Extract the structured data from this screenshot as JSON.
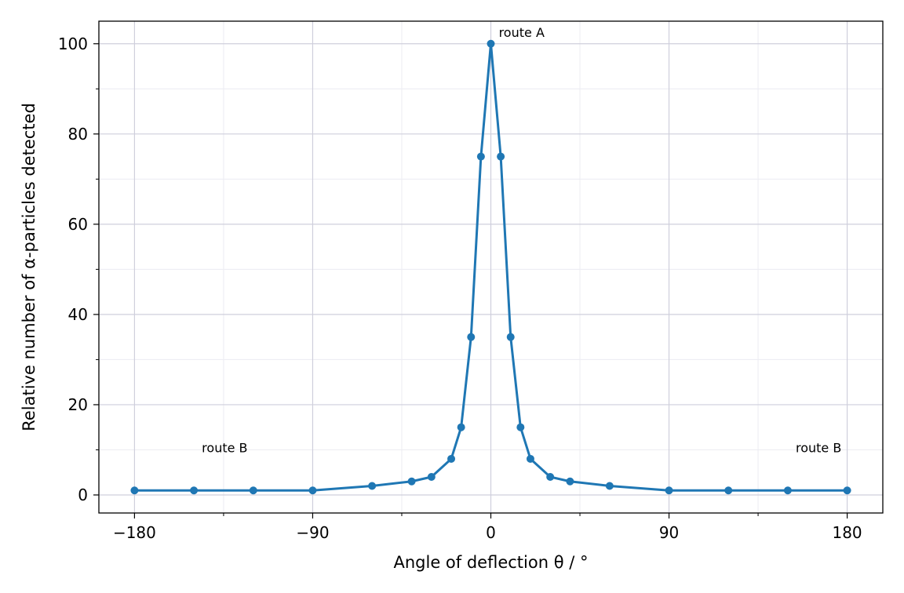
{
  "chart_data": {
    "type": "line",
    "title": "",
    "xlabel": "Angle of deflection θ / °",
    "ylabel": "Relative number of α-particles detected",
    "xlim": [
      -198,
      198
    ],
    "ylim": [
      -4,
      105
    ],
    "x_ticks": [
      -180,
      -90,
      0,
      90,
      180
    ],
    "x_tick_labels": [
      "−180",
      "−90",
      "0",
      "90",
      "180"
    ],
    "x_minor_ticks": [
      -135,
      -45,
      45,
      135
    ],
    "y_ticks": [
      0,
      20,
      40,
      60,
      80,
      100
    ],
    "y_tick_labels": [
      "0",
      "20",
      "40",
      "60",
      "80",
      "100"
    ],
    "y_minor_ticks": [
      10,
      30,
      50,
      70,
      90
    ],
    "grid": true,
    "color": "#1f77b4",
    "series": [
      {
        "name": "",
        "x": [
          -180,
          -150,
          -120,
          -90,
          -60,
          -40,
          -30,
          -20,
          -15,
          -10,
          -5,
          0,
          5,
          10,
          15,
          20,
          30,
          40,
          60,
          90,
          120,
          150,
          180
        ],
        "y": [
          1,
          1,
          1,
          1,
          2,
          3,
          4,
          8,
          15,
          35,
          75,
          100,
          75,
          35,
          15,
          8,
          4,
          3,
          2,
          1,
          1,
          1,
          1
        ]
      }
    ],
    "annotations": [
      {
        "text": "route A",
        "x": 4,
        "y": 101.5
      },
      {
        "text": "route B",
        "x": -146,
        "y": 9.5
      },
      {
        "text": "route B",
        "x": 154,
        "y": 9.5
      }
    ]
  }
}
